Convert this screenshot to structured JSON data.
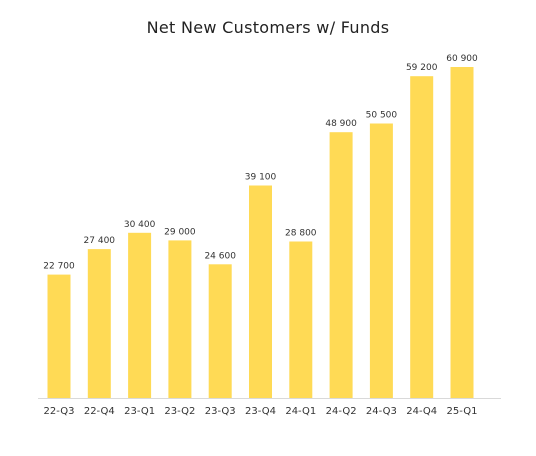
{
  "chart_data": {
    "type": "bar",
    "title": "Net New Customers w/ Funds",
    "xlabel": "",
    "ylabel": "",
    "categories": [
      "22-Q3",
      "22-Q4",
      "23-Q1",
      "23-Q2",
      "23-Q3",
      "23-Q4",
      "24-Q1",
      "24-Q2",
      "24-Q3",
      "24-Q4",
      "25-Q1"
    ],
    "values": [
      22700,
      27400,
      30400,
      29000,
      24600,
      39100,
      28800,
      48900,
      50500,
      59200,
      60900
    ],
    "data_labels": [
      "22 700",
      "27 400",
      "30 400",
      "29 000",
      "24 600",
      "39 100",
      "28 800",
      "48 900",
      "50 500",
      "59 200",
      "60 900"
    ],
    "ylim": [
      0,
      60900
    ],
    "grid": false,
    "legend": "none",
    "colors": {
      "bar": "#FFDA55",
      "axis": "#d9d9d9",
      "text": "#333333"
    }
  }
}
